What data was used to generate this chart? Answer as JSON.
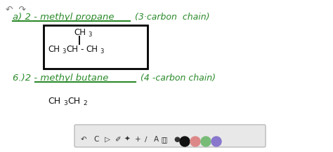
{
  "bg_color": "#ffffff",
  "green": "#2a8a2a",
  "black": "#111111",
  "gray_dark": "#444444",
  "gray_light": "#bbbbbb",
  "toolbar_bg": "#e8e8e8",
  "title_a": "a) 2 - methyl propane",
  "title_a_note": "(3·carbon  chain)",
  "title_b": "6.)2 - methyl butane",
  "title_b_note": "(4 -carbon chain)",
  "circle_colors": [
    "#222222",
    "#e08888",
    "#88bb88",
    "#9988cc"
  ]
}
